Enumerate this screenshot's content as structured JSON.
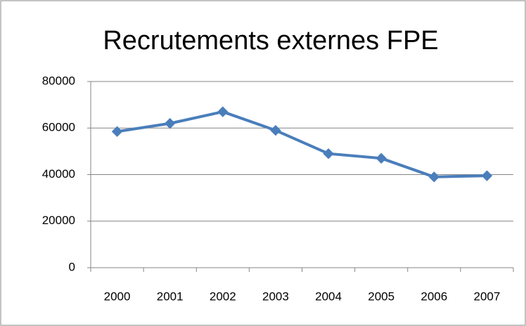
{
  "chart_data": {
    "type": "line",
    "title": "Recrutements externes FPE",
    "categories": [
      "2000",
      "2001",
      "2002",
      "2003",
      "2004",
      "2005",
      "2006",
      "2007"
    ],
    "series": [
      {
        "name": "Recrutements externes FPE",
        "color": "#4a7ebb",
        "values": [
          58500,
          62000,
          67000,
          59000,
          49000,
          47000,
          39000,
          39500
        ]
      }
    ],
    "ylim": [
      0,
      80000
    ],
    "yticks": [
      0,
      20000,
      40000,
      60000,
      80000
    ],
    "grid": true
  }
}
